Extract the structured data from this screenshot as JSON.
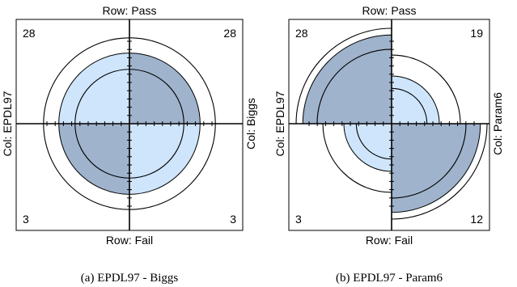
{
  "colors": {
    "dark": "#9fb3cc",
    "light": "#cfe5fb",
    "stroke": "#000000"
  },
  "chart_data": [
    {
      "type": "fourfold",
      "row_top": "Row: Pass",
      "row_bottom": "Row: Fail",
      "col_left": "Col: EPDL97",
      "col_right": "Col: Biggs",
      "caption": "(a) EPDL97 - Biggs",
      "cells": {
        "top_left": 28,
        "top_right": 28,
        "bottom_left": 3,
        "bottom_right": 3
      },
      "shaded": {
        "top_left": "light",
        "top_right": "dark",
        "bottom_left": "dark",
        "bottom_right": "light"
      },
      "radii": {
        "top_left": 0.74,
        "top_right": 0.74,
        "bottom_left": 0.74,
        "bottom_right": 0.74
      },
      "rings": [
        0.9,
        0.57
      ]
    },
    {
      "type": "fourfold",
      "row_top": "Row: Pass",
      "row_bottom": "Row: Fail",
      "col_left": "Col: EPDL97",
      "col_right": "Col: Param6",
      "caption": "(b) EPDL97 - Param6",
      "cells": {
        "top_left": 28,
        "top_right": 19,
        "bottom_left": 3,
        "bottom_right": 12
      },
      "shaded": {
        "top_left": "dark",
        "top_right": "light",
        "bottom_left": "light",
        "bottom_right": "dark"
      },
      "radii": {
        "top_left": 0.93,
        "top_right": 0.5,
        "bottom_left": 0.5,
        "bottom_right": 0.93
      },
      "rings": {
        "top_left": [
          1.0,
          0.78
        ],
        "top_right": [
          0.72,
          0.37
        ],
        "bottom_left": [
          0.72,
          0.37
        ],
        "bottom_right": [
          1.0,
          0.78
        ]
      }
    }
  ]
}
